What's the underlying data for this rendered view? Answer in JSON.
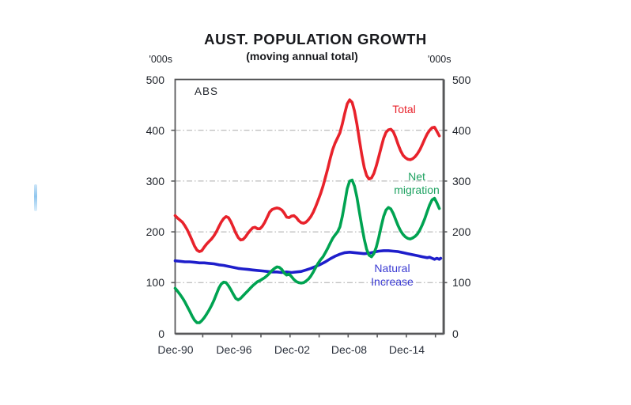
{
  "chart_data": {
    "type": "line",
    "title": "AUST. POPULATION GROWTH",
    "subtitle": "(moving annual total)",
    "source": "ABS",
    "unit_label": "'000s",
    "ylim": [
      0,
      500
    ],
    "x_domain": [
      1991.1,
      2018.75
    ],
    "y_tick_labels": [
      "500",
      "400",
      "300",
      "200",
      "100",
      "0"
    ],
    "y_grid_values": [
      100,
      200,
      300,
      400
    ],
    "x_tick_labels": [
      "Dec-90",
      "Dec-96",
      "Dec-02",
      "Dec-08",
      "Dec-14"
    ],
    "x_minor_tick_years": [
      1993.95,
      1996.95,
      1999.95,
      2002.95,
      2005.95,
      2008.95,
      2011.95,
      2014.95,
      2017.95
    ],
    "grid_style": "horizontal dash-dot",
    "legend_position": "inline labels next to lines",
    "colors": {
      "grid": "#aaaaaa",
      "axis": "#58595b",
      "title_text": "#17181c",
      "tick_text": "#20242b"
    },
    "series": [
      {
        "id": "total",
        "name": "Total",
        "label_lines": [
          "Total"
        ],
        "color": "#e8222b",
        "points": [
          [
            1991.1,
            232
          ],
          [
            1991.35,
            227
          ],
          [
            1991.6,
            223
          ],
          [
            1991.85,
            219
          ],
          [
            1992.1,
            212
          ],
          [
            1992.35,
            204
          ],
          [
            1992.6,
            194
          ],
          [
            1992.85,
            183
          ],
          [
            1993.1,
            172
          ],
          [
            1993.35,
            164
          ],
          [
            1993.6,
            161
          ],
          [
            1993.85,
            163
          ],
          [
            1994.1,
            170
          ],
          [
            1994.35,
            176
          ],
          [
            1994.6,
            181
          ],
          [
            1994.85,
            186
          ],
          [
            1995.1,
            192
          ],
          [
            1995.35,
            200
          ],
          [
            1995.6,
            210
          ],
          [
            1995.85,
            219
          ],
          [
            1996.1,
            226
          ],
          [
            1996.35,
            230
          ],
          [
            1996.6,
            228
          ],
          [
            1996.85,
            220
          ],
          [
            1997.1,
            209
          ],
          [
            1997.35,
            198
          ],
          [
            1997.6,
            189
          ],
          [
            1997.85,
            184
          ],
          [
            1998.1,
            185
          ],
          [
            1998.35,
            190
          ],
          [
            1998.6,
            197
          ],
          [
            1998.85,
            203
          ],
          [
            1999.1,
            208
          ],
          [
            1999.35,
            209
          ],
          [
            1999.6,
            206
          ],
          [
            1999.85,
            206
          ],
          [
            2000.1,
            211
          ],
          [
            2000.35,
            219
          ],
          [
            2000.6,
            229
          ],
          [
            2000.85,
            239
          ],
          [
            2001.1,
            244
          ],
          [
            2001.35,
            246
          ],
          [
            2001.6,
            247
          ],
          [
            2001.85,
            246
          ],
          [
            2002.1,
            243
          ],
          [
            2002.35,
            237
          ],
          [
            2002.6,
            229
          ],
          [
            2002.85,
            228
          ],
          [
            2003.1,
            231
          ],
          [
            2003.35,
            232
          ],
          [
            2003.6,
            228
          ],
          [
            2003.85,
            222
          ],
          [
            2004.1,
            218
          ],
          [
            2004.35,
            217
          ],
          [
            2004.6,
            219
          ],
          [
            2004.85,
            224
          ],
          [
            2005.1,
            230
          ],
          [
            2005.35,
            239
          ],
          [
            2005.6,
            250
          ],
          [
            2005.85,
            262
          ],
          [
            2006.1,
            275
          ],
          [
            2006.35,
            290
          ],
          [
            2006.6,
            307
          ],
          [
            2006.85,
            325
          ],
          [
            2007.1,
            345
          ],
          [
            2007.35,
            362
          ],
          [
            2007.6,
            375
          ],
          [
            2007.85,
            385
          ],
          [
            2008.1,
            395
          ],
          [
            2008.35,
            413
          ],
          [
            2008.6,
            434
          ],
          [
            2008.85,
            452
          ],
          [
            2009.1,
            460
          ],
          [
            2009.35,
            455
          ],
          [
            2009.6,
            438
          ],
          [
            2009.85,
            412
          ],
          [
            2010.1,
            382
          ],
          [
            2010.35,
            352
          ],
          [
            2010.6,
            327
          ],
          [
            2010.85,
            311
          ],
          [
            2011.1,
            304
          ],
          [
            2011.35,
            306
          ],
          [
            2011.6,
            315
          ],
          [
            2011.85,
            330
          ],
          [
            2012.1,
            348
          ],
          [
            2012.35,
            366
          ],
          [
            2012.6,
            384
          ],
          [
            2012.85,
            396
          ],
          [
            2013.1,
            401
          ],
          [
            2013.35,
            402
          ],
          [
            2013.6,
            397
          ],
          [
            2013.85,
            386
          ],
          [
            2014.1,
            372
          ],
          [
            2014.35,
            360
          ],
          [
            2014.6,
            351
          ],
          [
            2014.85,
            346
          ],
          [
            2015.1,
            343
          ],
          [
            2015.35,
            342
          ],
          [
            2015.6,
            344
          ],
          [
            2015.85,
            348
          ],
          [
            2016.1,
            354
          ],
          [
            2016.35,
            362
          ],
          [
            2016.6,
            372
          ],
          [
            2016.85,
            383
          ],
          [
            2017.1,
            393
          ],
          [
            2017.35,
            400
          ],
          [
            2017.6,
            405
          ],
          [
            2017.85,
            406
          ],
          [
            2018.1,
            398
          ],
          [
            2018.35,
            389
          ]
        ]
      },
      {
        "id": "net-migration",
        "name": "Net migration",
        "label_lines": [
          "Net",
          "migration"
        ],
        "color": "#00a351",
        "points": [
          [
            1991.1,
            89
          ],
          [
            1991.35,
            83
          ],
          [
            1991.6,
            77
          ],
          [
            1991.85,
            70
          ],
          [
            1992.1,
            62
          ],
          [
            1992.35,
            53
          ],
          [
            1992.6,
            44
          ],
          [
            1992.85,
            34
          ],
          [
            1993.1,
            26
          ],
          [
            1993.35,
            21
          ],
          [
            1993.6,
            21
          ],
          [
            1993.85,
            25
          ],
          [
            1994.1,
            31
          ],
          [
            1994.35,
            38
          ],
          [
            1994.6,
            46
          ],
          [
            1994.85,
            55
          ],
          [
            1995.1,
            65
          ],
          [
            1995.35,
            77
          ],
          [
            1995.6,
            89
          ],
          [
            1995.85,
            97
          ],
          [
            1996.1,
            101
          ],
          [
            1996.35,
            100
          ],
          [
            1996.6,
            94
          ],
          [
            1996.85,
            86
          ],
          [
            1997.1,
            77
          ],
          [
            1997.35,
            69
          ],
          [
            1997.6,
            66
          ],
          [
            1997.85,
            69
          ],
          [
            1998.1,
            74
          ],
          [
            1998.35,
            79
          ],
          [
            1998.6,
            84
          ],
          [
            1998.85,
            89
          ],
          [
            1999.1,
            94
          ],
          [
            1999.35,
            98
          ],
          [
            1999.6,
            102
          ],
          [
            1999.85,
            104
          ],
          [
            2000.1,
            107
          ],
          [
            2000.35,
            110
          ],
          [
            2000.6,
            114
          ],
          [
            2000.85,
            119
          ],
          [
            2001.1,
            124
          ],
          [
            2001.35,
            128
          ],
          [
            2001.6,
            131
          ],
          [
            2001.85,
            130
          ],
          [
            2002.1,
            126
          ],
          [
            2002.35,
            119
          ],
          [
            2002.6,
            115
          ],
          [
            2002.85,
            117
          ],
          [
            2003.1,
            112
          ],
          [
            2003.35,
            106
          ],
          [
            2003.6,
            102
          ],
          [
            2003.85,
            100
          ],
          [
            2004.1,
            99
          ],
          [
            2004.35,
            100
          ],
          [
            2004.6,
            103
          ],
          [
            2004.85,
            107
          ],
          [
            2005.1,
            113
          ],
          [
            2005.35,
            121
          ],
          [
            2005.6,
            130
          ],
          [
            2005.85,
            138
          ],
          [
            2006.1,
            145
          ],
          [
            2006.35,
            151
          ],
          [
            2006.6,
            159
          ],
          [
            2006.85,
            168
          ],
          [
            2007.1,
            178
          ],
          [
            2007.35,
            187
          ],
          [
            2007.6,
            194
          ],
          [
            2007.85,
            200
          ],
          [
            2008.1,
            210
          ],
          [
            2008.35,
            231
          ],
          [
            2008.6,
            258
          ],
          [
            2008.85,
            285
          ],
          [
            2009.1,
            300
          ],
          [
            2009.35,
            302
          ],
          [
            2009.6,
            290
          ],
          [
            2009.85,
            268
          ],
          [
            2010.1,
            240
          ],
          [
            2010.35,
            212
          ],
          [
            2010.6,
            186
          ],
          [
            2010.85,
            166
          ],
          [
            2011.1,
            154
          ],
          [
            2011.35,
            151
          ],
          [
            2011.6,
            157
          ],
          [
            2011.85,
            170
          ],
          [
            2012.1,
            189
          ],
          [
            2012.35,
            210
          ],
          [
            2012.6,
            230
          ],
          [
            2012.85,
            243
          ],
          [
            2013.1,
            248
          ],
          [
            2013.35,
            245
          ],
          [
            2013.6,
            236
          ],
          [
            2013.85,
            224
          ],
          [
            2014.1,
            212
          ],
          [
            2014.35,
            202
          ],
          [
            2014.6,
            195
          ],
          [
            2014.85,
            190
          ],
          [
            2015.1,
            187
          ],
          [
            2015.35,
            186
          ],
          [
            2015.6,
            188
          ],
          [
            2015.85,
            191
          ],
          [
            2016.1,
            196
          ],
          [
            2016.35,
            204
          ],
          [
            2016.6,
            214
          ],
          [
            2016.85,
            226
          ],
          [
            2017.1,
            240
          ],
          [
            2017.35,
            253
          ],
          [
            2017.6,
            263
          ],
          [
            2017.85,
            266
          ],
          [
            2018.1,
            257
          ],
          [
            2018.35,
            246
          ]
        ]
      },
      {
        "id": "natural-increase",
        "name": "Natural Increase",
        "label_lines": [
          "Natural",
          "Increase"
        ],
        "color": "#1e1ecb",
        "points": [
          [
            1991.1,
            143
          ],
          [
            1991.6,
            142
          ],
          [
            1992.1,
            141
          ],
          [
            1992.6,
            141
          ],
          [
            1993.1,
            140
          ],
          [
            1993.6,
            139
          ],
          [
            1994.1,
            139
          ],
          [
            1994.6,
            138
          ],
          [
            1995.1,
            137
          ],
          [
            1995.6,
            135
          ],
          [
            1996.1,
            134
          ],
          [
            1996.6,
            132
          ],
          [
            1997.1,
            130
          ],
          [
            1997.6,
            128
          ],
          [
            1998.1,
            127
          ],
          [
            1998.6,
            126
          ],
          [
            1999.1,
            125
          ],
          [
            1999.6,
            124
          ],
          [
            2000.1,
            123
          ],
          [
            2000.6,
            122
          ],
          [
            2001.1,
            121
          ],
          [
            2001.6,
            121
          ],
          [
            2002.1,
            120
          ],
          [
            2002.6,
            121
          ],
          [
            2003.1,
            120
          ],
          [
            2003.6,
            121
          ],
          [
            2004.1,
            122
          ],
          [
            2004.6,
            125
          ],
          [
            2005.1,
            128
          ],
          [
            2005.6,
            132
          ],
          [
            2006.1,
            136
          ],
          [
            2006.6,
            141
          ],
          [
            2007.1,
            147
          ],
          [
            2007.6,
            152
          ],
          [
            2008.1,
            156
          ],
          [
            2008.6,
            159
          ],
          [
            2009.1,
            160
          ],
          [
            2009.6,
            159
          ],
          [
            2010.1,
            158
          ],
          [
            2010.6,
            157
          ],
          [
            2011.1,
            158
          ],
          [
            2011.6,
            160
          ],
          [
            2012.1,
            162
          ],
          [
            2012.6,
            163
          ],
          [
            2013.1,
            163
          ],
          [
            2013.6,
            162
          ],
          [
            2014.1,
            161
          ],
          [
            2014.6,
            159
          ],
          [
            2015.1,
            157
          ],
          [
            2015.6,
            155
          ],
          [
            2016.1,
            153
          ],
          [
            2016.6,
            151
          ],
          [
            2017.1,
            149
          ],
          [
            2017.35,
            150
          ],
          [
            2017.6,
            148
          ],
          [
            2017.85,
            146
          ],
          [
            2018.1,
            148
          ],
          [
            2018.35,
            146
          ],
          [
            2018.5,
            148
          ]
        ]
      }
    ]
  },
  "artifact": {
    "description": "faint light-blue stray mark at left margin",
    "color": "#90c6ee"
  }
}
